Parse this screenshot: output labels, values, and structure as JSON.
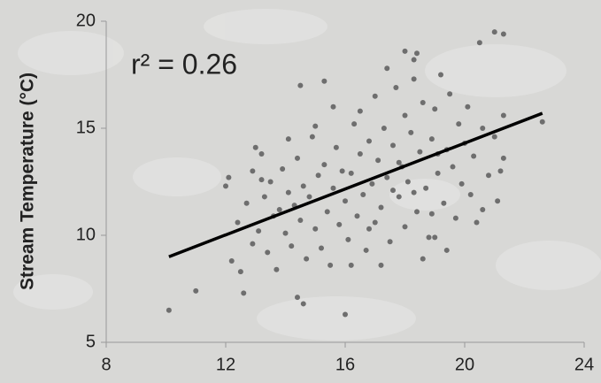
{
  "chart_data": {
    "type": "scatter",
    "ylabel": "Stream Temperature (°C)",
    "annotation": "r² = 0.26",
    "color": "#6e6e6e",
    "xlim": [
      8,
      24
    ],
    "xticks": [
      8,
      12,
      16,
      20,
      24
    ],
    "ylim": [
      5,
      20
    ],
    "yticks": [
      5,
      10,
      15,
      20
    ],
    "x": [
      10.1,
      11,
      12.1,
      12,
      12.2,
      12.5,
      12.6,
      13,
      13.2,
      16,
      14.6,
      14.4,
      14.5,
      15.3,
      18,
      18.4,
      18.3,
      20.5,
      21,
      21.3,
      22.6,
      21.3,
      20.6,
      19,
      17.2,
      12.4,
      12.7,
      12.9,
      13.1,
      13.3,
      13.4,
      13.5,
      13.6,
      13.7,
      13.8,
      13.9,
      14.0,
      14.1,
      14.2,
      14.3,
      14.4,
      14.5,
      14.6,
      14.7,
      14.8,
      14.9,
      15.0,
      15.1,
      15.2,
      15.3,
      15.4,
      15.5,
      15.6,
      15.7,
      15.8,
      15.9,
      16.0,
      16.1,
      16.2,
      16.3,
      16.4,
      16.5,
      16.6,
      16.7,
      16.8,
      16.9,
      17.0,
      17.0,
      17.1,
      17.2,
      17.3,
      17.4,
      17.5,
      17.6,
      17.7,
      17.8,
      17.9,
      18.0,
      18.0,
      18.1,
      18.2,
      18.3,
      18.4,
      18.5,
      18.6,
      18.7,
      18.8,
      18.9,
      19.0,
      19.1,
      19.2,
      19.3,
      19.4,
      19.5,
      19.6,
      19.7,
      19.8,
      19.9,
      20.0,
      20.1,
      20.2,
      20.3,
      20.4,
      20.6,
      20.8,
      21.0,
      21.2,
      21.3,
      21.1,
      16.5,
      17.4,
      15.6,
      14.1,
      16.2,
      18.6,
      19.4,
      13.2,
      12.9,
      15.0,
      17.8,
      18.3,
      16.8,
      17.6,
      19.1,
      18.9
    ],
    "y": [
      6.5,
      7.4,
      12.7,
      12.3,
      8.8,
      8.3,
      7.3,
      14.1,
      13.8,
      6.3,
      6.8,
      7.1,
      17,
      17.2,
      18.6,
      18.5,
      18.2,
      19,
      19.5,
      19.4,
      15.3,
      13.6,
      11.2,
      9.9,
      8.6,
      10.6,
      11.5,
      9.6,
      10.2,
      11.8,
      9.2,
      12.5,
      10.9,
      8.4,
      11.2,
      13.1,
      10.1,
      12.0,
      9.5,
      11.4,
      13.6,
      10.7,
      12.3,
      8.9,
      11.8,
      14.6,
      10.3,
      12.8,
      9.4,
      13.3,
      11.1,
      8.6,
      12.2,
      14.1,
      10.5,
      13.0,
      11.6,
      9.8,
      12.9,
      15.2,
      10.9,
      13.8,
      11.9,
      9.3,
      14.4,
      12.4,
      16.5,
      10.6,
      13.5,
      11.3,
      15.0,
      12.7,
      9.7,
      14.2,
      16.9,
      11.8,
      13.2,
      15.6,
      10.4,
      12.5,
      14.8,
      17.3,
      11.1,
      13.9,
      16.2,
      12.2,
      9.9,
      14.5,
      15.9,
      12.9,
      17.5,
      11.5,
      14.0,
      16.6,
      13.2,
      10.8,
      15.2,
      12.4,
      14.3,
      16.0,
      11.9,
      13.7,
      10.6,
      15.0,
      12.8,
      14.6,
      13.0,
      15.6,
      11.6,
      15.8,
      17.8,
      16.0,
      14.5,
      8.6,
      8.9,
      9.3,
      12.6,
      13.0,
      15.1,
      13.4,
      12.0,
      10.3,
      12.1,
      13.8,
      11.0
    ],
    "trendline": {
      "x": [
        10.1,
        22.6
      ],
      "y": [
        9.0,
        15.7
      ]
    }
  }
}
